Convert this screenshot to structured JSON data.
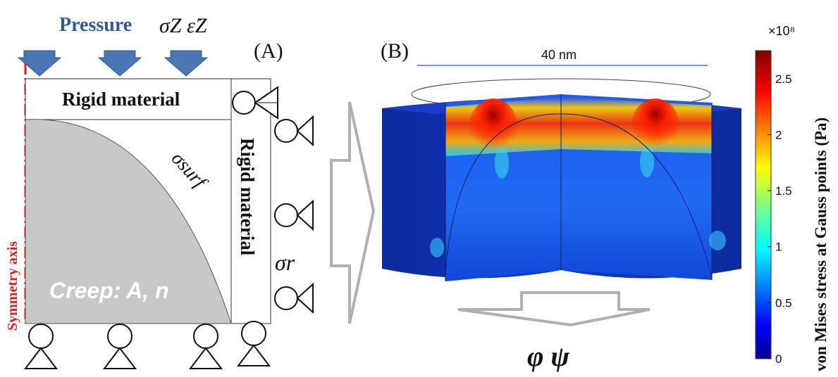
{
  "panel_a": {
    "label": "(A)",
    "pressure_label": "Pressure",
    "sigma_z_label": "σZ ε̇Z",
    "rigid_top_label": "Rigid material",
    "rigid_side_label": "Rigid material",
    "sigma_surf_label": "σsurf",
    "sigma_r_label": "σr",
    "creep_label": "Creep: A, n",
    "symmetry_axis_label": "Symmetry axis",
    "colors": {
      "pressure_arrow": "#4a77b4",
      "symmetry_axis": "#e02020",
      "particle_fill": "#c8c8c8",
      "creep_text": "#ffffff"
    }
  },
  "panel_b": {
    "label": "(B)",
    "scale_label": "40 nm",
    "output_label": "φ ψ",
    "colors": {
      "scale_line": "#4a77b4",
      "cylinder": "#0a2ba8",
      "arrows": "#b0b0b0"
    }
  },
  "colorbar": {
    "exponent_label": "×10⁸",
    "title": "von Mises stress at Gauss points (Pa)",
    "ticks": [
      "2.5",
      "2",
      "1.5",
      "1",
      "0.5",
      "0"
    ],
    "range": [
      0,
      2.75
    ],
    "colormap": "jet"
  }
}
